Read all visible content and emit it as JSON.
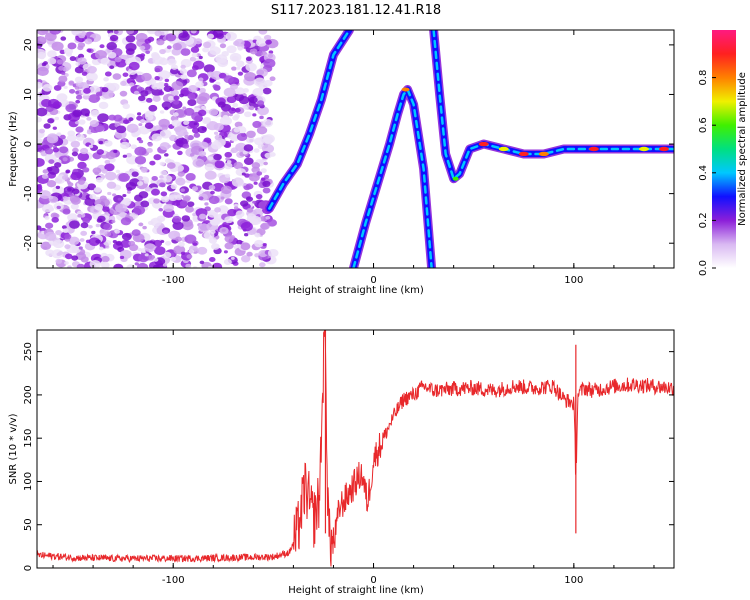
{
  "title": "S117.2023.181.12.41.R18",
  "chart_data": [
    {
      "type": "heatmap",
      "xlabel": "Height of straight line (km)",
      "ylabel": "Frequency (Hz)",
      "xlim": [
        -168,
        150
      ],
      "ylim": [
        -25,
        23
      ],
      "xticks": [
        -100,
        0,
        100
      ],
      "yticks": [
        -20,
        -10,
        0,
        10,
        20
      ],
      "colorbar": {
        "label": "Normalized spectral amplitude",
        "range": [
          0,
          1
        ],
        "ticks": [
          "0.0",
          "0.2",
          "0.4",
          "0.6",
          "0.8"
        ],
        "colormap": [
          "#ffffff",
          "#d9b8f2",
          "#8c1fd9",
          "#1010ff",
          "#00c8ff",
          "#00e080",
          "#40f000",
          "#f0f000",
          "#ff8000",
          "#ff2020",
          "#ff1a80"
        ]
      },
      "noise_region_x": [
        -168,
        -50
      ],
      "tracks": [
        {
          "name": "",
          "points": [
            [
              -52,
              -13
            ],
            [
              -45,
              -8
            ],
            [
              -38,
              -4
            ],
            [
              -32,
              2
            ],
            [
              -26,
              9
            ],
            [
              -20,
              18
            ],
            [
              -12,
              23
            ]
          ]
        },
        {
          "name": "",
          "points": [
            [
              -10,
              -25
            ],
            [
              -4,
              -16
            ],
            [
              2,
              -8
            ],
            [
              8,
              0
            ],
            [
              12,
              6
            ],
            [
              15,
              10
            ],
            [
              17,
              11
            ],
            [
              20,
              8
            ],
            [
              25,
              -5
            ],
            [
              29,
              -25
            ]
          ]
        },
        {
          "name": "",
          "points": [
            [
              30,
              23
            ],
            [
              33,
              10
            ],
            [
              36,
              -2
            ],
            [
              40,
              -7
            ],
            [
              43,
              -6
            ],
            [
              48,
              -1
            ],
            [
              55,
              0
            ],
            [
              65,
              -1
            ],
            [
              75,
              -2
            ],
            [
              85,
              -2
            ],
            [
              95,
              -1
            ],
            [
              110,
              -1
            ],
            [
              130,
              -1
            ],
            [
              150,
              -1
            ]
          ]
        }
      ]
    },
    {
      "type": "line",
      "xlabel": "Height of straight line (km)",
      "ylabel": "SNR (10 * v/v)",
      "xlim": [
        -168,
        150
      ],
      "ylim": [
        0,
        275
      ],
      "xticks": [
        -100,
        0,
        100
      ],
      "yticks": [
        0,
        50,
        100,
        150,
        200,
        250
      ],
      "color": "#e8282b",
      "series": [
        {
          "name": "",
          "x": [
            -168,
            -150,
            -130,
            -110,
            -90,
            -70,
            -50,
            -42,
            -38,
            -34,
            -30,
            -27,
            -25,
            -24,
            -23,
            -22,
            -20,
            -17,
            -14,
            -10,
            -6,
            -3,
            0,
            5,
            10,
            15,
            20,
            25,
            30,
            40,
            50,
            60,
            70,
            80,
            90,
            95,
            100,
            101,
            102,
            105,
            110,
            120,
            130,
            140,
            150
          ],
          "y": [
            15,
            12,
            11,
            11,
            11,
            12,
            13,
            18,
            40,
            95,
            55,
            80,
            235,
            275,
            90,
            35,
            25,
            70,
            80,
            95,
            110,
            75,
            125,
            150,
            175,
            195,
            200,
            210,
            205,
            207,
            208,
            205,
            210,
            208,
            210,
            195,
            190,
            110,
            200,
            208,
            205,
            210,
            212,
            210,
            208
          ]
        }
      ]
    }
  ]
}
